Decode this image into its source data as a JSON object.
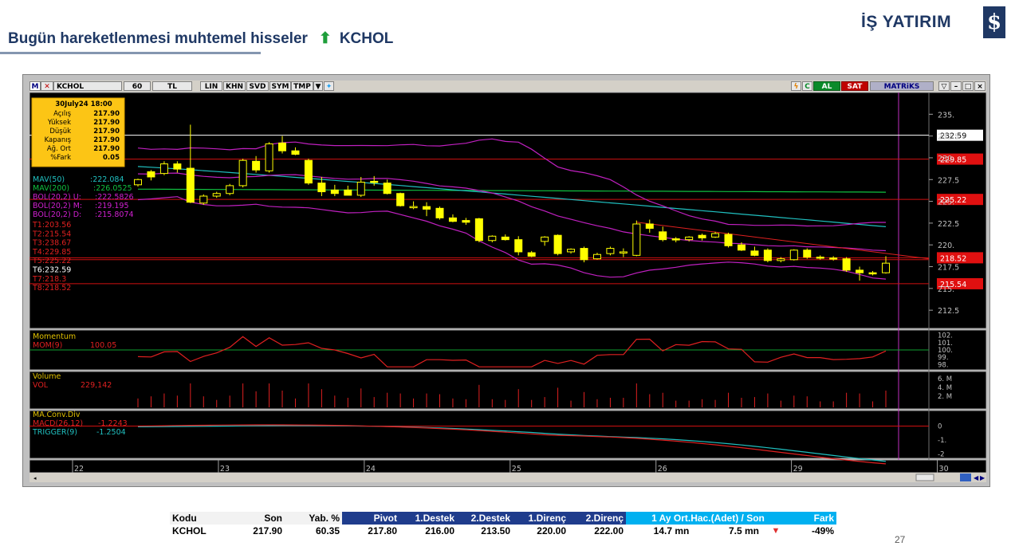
{
  "header": {
    "title": "Bugün hareketlenmesi muhtemel hisseler",
    "arrow": "⬆",
    "symbol": "KCHOL",
    "brand": "İŞ YATIRIM",
    "logo_glyph": "$"
  },
  "toolbar": {
    "items": [
      "M",
      "KCHOL",
      "60",
      "TL",
      "LIN",
      "KHN",
      "SVD",
      "SYM",
      "TMP"
    ],
    "right": [
      "AL",
      "SAT",
      "MATRiKS"
    ]
  },
  "infobox": {
    "date": "30July24 18:00",
    "rows": [
      {
        "label": "Açılış",
        "value": "217.90"
      },
      {
        "label": "Yüksek",
        "value": "217.90"
      },
      {
        "label": "Düşük",
        "value": "217.90"
      },
      {
        "label": "Kapanış",
        "value": "217.90"
      },
      {
        "label": "Ağ. Ort",
        "value": "217.90"
      },
      {
        "label": "%Fark",
        "value": "0.05"
      }
    ]
  },
  "chart_data": {
    "type": "candlestick",
    "symbol": "KCHOL",
    "interval": "60",
    "ylim": [
      210.5,
      237.5
    ],
    "y_ticks": [
      "235.",
      "232.5",
      "230.",
      "227.5",
      "225.",
      "222.5",
      "220.",
      "217.5",
      "215.",
      "212.5"
    ],
    "x_days": [
      "22",
      "23",
      "24",
      "25",
      "26",
      "29",
      "30"
    ],
    "candles": [
      [
        226.9,
        227.6,
        226.7,
        227.5
      ],
      [
        228.4,
        228.6,
        227.4,
        227.8
      ],
      [
        228.2,
        229.6,
        228.0,
        229.3
      ],
      [
        229.3,
        229.6,
        228.3,
        228.7
      ],
      [
        228.8,
        233.8,
        224.8,
        224.9
      ],
      [
        224.8,
        225.8,
        224.6,
        225.6
      ],
      [
        225.6,
        226.1,
        225.4,
        225.9
      ],
      [
        225.9,
        227.0,
        225.7,
        226.8
      ],
      [
        226.8,
        229.9,
        226.6,
        229.7
      ],
      [
        229.6,
        230.2,
        228.3,
        228.6
      ],
      [
        228.5,
        231.8,
        228.3,
        231.6
      ],
      [
        231.7,
        232.5,
        230.5,
        230.8
      ],
      [
        230.8,
        231.2,
        230.3,
        230.4
      ],
      [
        229.7,
        229.9,
        226.9,
        227.1
      ],
      [
        227.1,
        227.8,
        225.6,
        226.1
      ],
      [
        226.3,
        226.9,
        225.6,
        225.9
      ],
      [
        226.3,
        226.8,
        225.8,
        225.7
      ],
      [
        225.7,
        227.8,
        225.5,
        227.2
      ],
      [
        227.3,
        227.9,
        226.8,
        227.2
      ],
      [
        227.1,
        227.5,
        225.8,
        225.9
      ],
      [
        225.9,
        226.0,
        224.4,
        224.5
      ],
      [
        224.4,
        225.0,
        224.1,
        224.4
      ],
      [
        224.4,
        224.9,
        223.3,
        224.1
      ],
      [
        224.2,
        224.4,
        222.9,
        223.1
      ],
      [
        223.1,
        223.5,
        222.6,
        222.7
      ],
      [
        222.8,
        223.1,
        222.3,
        222.6
      ],
      [
        223.0,
        223.1,
        220.3,
        220.5
      ],
      [
        220.5,
        221.1,
        220.3,
        221.0
      ],
      [
        220.9,
        221.2,
        220.5,
        220.6
      ],
      [
        220.6,
        221.0,
        218.8,
        219.2
      ],
      [
        219.1,
        219.3,
        218.6,
        218.7
      ],
      [
        220.4,
        221.0,
        219.9,
        220.9
      ],
      [
        221.1,
        221.2,
        218.8,
        219.0
      ],
      [
        219.2,
        219.6,
        219.0,
        219.5
      ],
      [
        219.6,
        219.8,
        218.0,
        218.3
      ],
      [
        218.4,
        219.1,
        218.3,
        218.9
      ],
      [
        219.0,
        219.8,
        218.8,
        219.6
      ],
      [
        219.1,
        219.6,
        218.6,
        219.2
      ],
      [
        218.8,
        222.8,
        218.7,
        222.4
      ],
      [
        222.4,
        222.9,
        221.4,
        221.9
      ],
      [
        221.5,
        222.1,
        220.4,
        220.6
      ],
      [
        220.7,
        220.9,
        220.3,
        220.6
      ],
      [
        220.6,
        221.0,
        220.4,
        220.9
      ],
      [
        221.1,
        221.3,
        220.5,
        220.8
      ],
      [
        220.9,
        221.5,
        220.8,
        221.3
      ],
      [
        221.2,
        221.4,
        219.7,
        219.9
      ],
      [
        220.0,
        220.3,
        219.3,
        219.4
      ],
      [
        219.3,
        219.8,
        218.7,
        218.8
      ],
      [
        219.4,
        219.6,
        218.0,
        218.2
      ],
      [
        218.2,
        218.6,
        218.0,
        218.4
      ],
      [
        218.3,
        219.5,
        218.2,
        219.4
      ],
      [
        219.4,
        219.6,
        218.4,
        218.6
      ],
      [
        218.6,
        218.8,
        218.3,
        218.5
      ],
      [
        218.5,
        218.7,
        218.2,
        218.4
      ],
      [
        218.4,
        218.6,
        216.9,
        217.1
      ],
      [
        217.1,
        217.5,
        215.9,
        216.8
      ],
      [
        216.8,
        217.0,
        216.5,
        216.7
      ],
      [
        216.8,
        218.7,
        216.7,
        217.9
      ]
    ],
    "indicators": {
      "MAV(50)": 222.084,
      "MAV(200)": 226.0525,
      "BOL(20,2) U": 222.5826,
      "BOL(20,2) M": 219.195,
      "BOL(20,2) D": 215.8074
    },
    "levels": [
      {
        "name": "T1",
        "value": 203.56
      },
      {
        "name": "T2",
        "value": 215.54
      },
      {
        "name": "T3",
        "value": 238.67
      },
      {
        "name": "T4",
        "value": 229.85
      },
      {
        "name": "T5",
        "value": 225.22
      },
      {
        "name": "T6",
        "value": 232.59
      },
      {
        "name": "T7",
        "value": 218.3
      },
      {
        "name": "T8",
        "value": 218.52
      }
    ],
    "right_labels": [
      "232.59",
      "229.85",
      "225.22",
      "218.52",
      "215.54"
    ],
    "momentum": {
      "title": "Momentum",
      "name": "MOM(9)",
      "last": "100.05",
      "ticks": [
        "102.",
        "101.",
        "100.",
        "99.",
        "98."
      ]
    },
    "volume": {
      "title": "Volume",
      "name": "VOL",
      "last": "229,142",
      "ticks": [
        "6. M",
        "4. M",
        "2. M"
      ]
    },
    "macd": {
      "title": "MA.Conv.Div",
      "macd_name": "MACD(26,12)",
      "macd_last": "-1.2243",
      "trigger_name": "TRIGGER(9)",
      "trigger_last": "-1.2504",
      "ticks": [
        "0",
        "-1.",
        "-2"
      ]
    }
  },
  "table": {
    "headers": [
      "Kodu",
      "Son",
      "Yab. %",
      "Pivot",
      "1.Destek",
      "2.Destek",
      "1.Direnç",
      "2.Direnç",
      "1 Ay Ort.Hac.(Adet)  /  Son",
      "Fark"
    ],
    "row": {
      "kodu": "KCHOL",
      "son": "217.90",
      "yab": "60.35",
      "pivot": "217.80",
      "destek1": "216.00",
      "destek2": "213.50",
      "direnc1": "220.00",
      "direnc2": "222.00",
      "hacim_ort": "14.7 mn",
      "hacim_son": "7.5 mn",
      "fark": "-49%"
    }
  },
  "page_number": "27"
}
